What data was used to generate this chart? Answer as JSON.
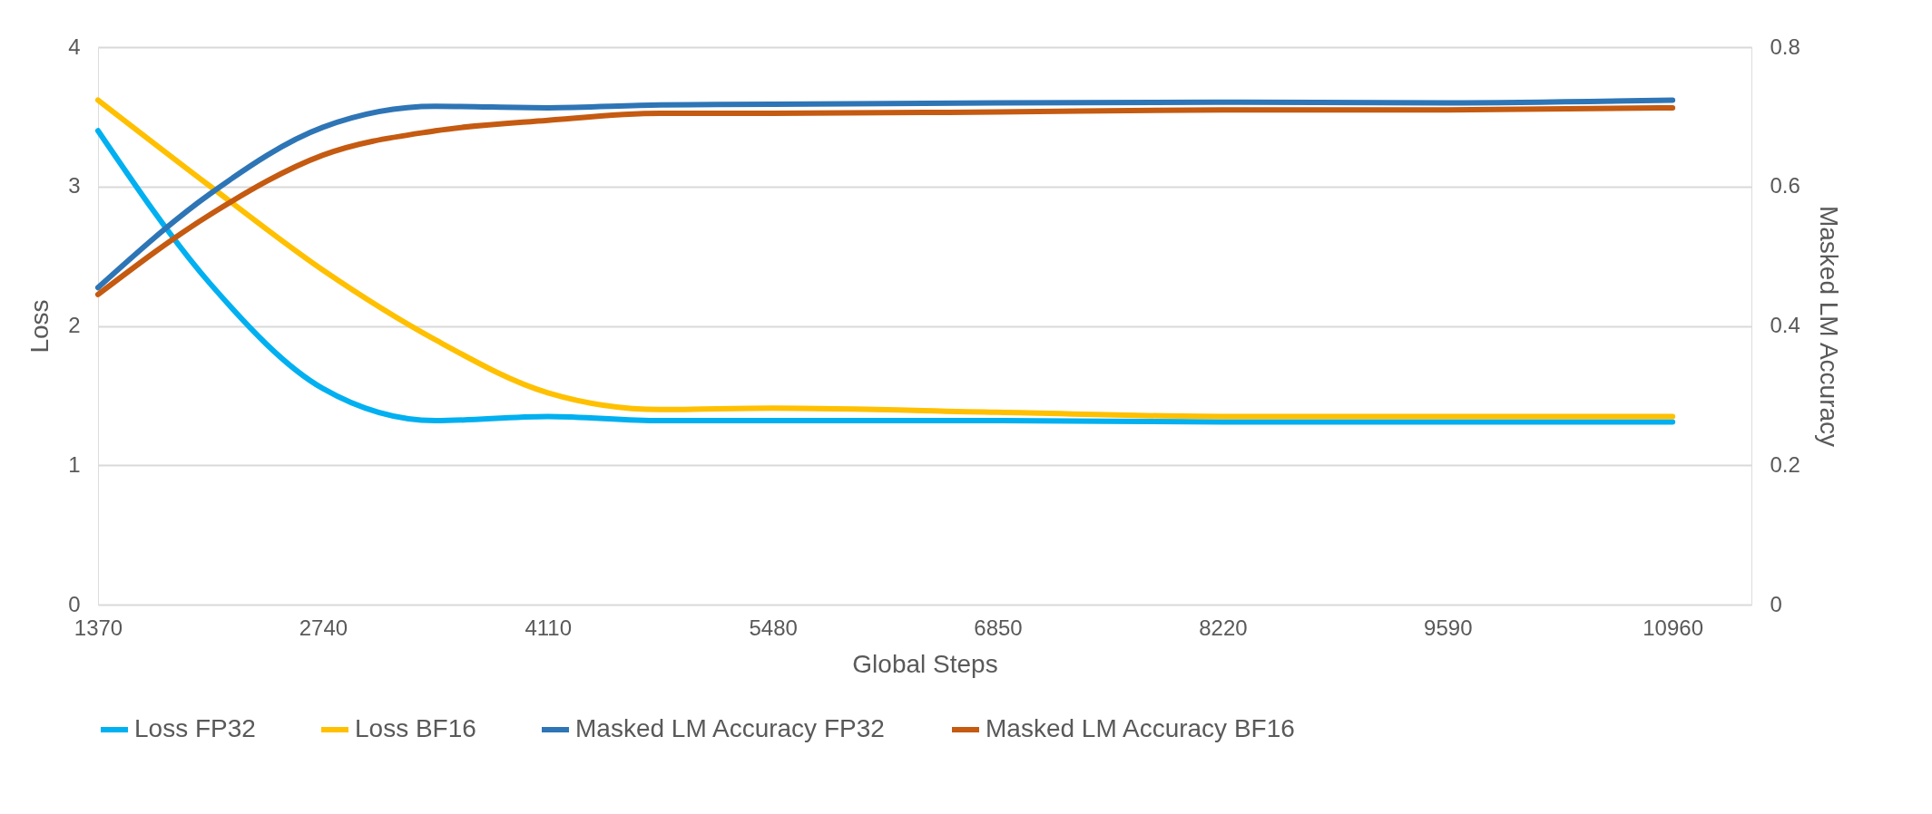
{
  "chart_data": {
    "type": "line",
    "xlabel": "Global Steps",
    "ylabel": "Loss",
    "y2label": "Masked LM Accuracy",
    "xlim": [
      1370,
      11440
    ],
    "xticks": [
      1370,
      2740,
      4110,
      5480,
      6850,
      8220,
      9590,
      10960
    ],
    "ylim": [
      0,
      4
    ],
    "yticks": [
      0,
      1,
      2,
      3,
      4
    ],
    "y2lim": [
      0,
      0.8
    ],
    "y2ticks": [
      0,
      0.2,
      0.4,
      0.6,
      0.8
    ],
    "grid": "y",
    "legend": "bottom",
    "marker": "none",
    "line_style": "solid",
    "x": [
      1370,
      2055,
      2740,
      3425,
      4110,
      4795,
      5480,
      6850,
      8220,
      9590,
      10960
    ],
    "series": [
      {
        "name": "Loss FP32",
        "color": "#00b0f0",
        "values": [
          3.4,
          2.3,
          1.55,
          1.32,
          1.35,
          1.32,
          1.32,
          1.32,
          1.31,
          1.31,
          1.31
        ]
      },
      {
        "name": "Loss BF16",
        "color": "#ffc000",
        "values": [
          3.62,
          3.0,
          2.4,
          1.9,
          1.52,
          1.4,
          1.41,
          1.38,
          1.35,
          1.35,
          1.35
        ]
      },
      {
        "name": "Masked LM Accuracy FP32",
        "color": "#2e75b6",
        "axis": "y2",
        "values": [
          0.455,
          0.59,
          0.685,
          0.715,
          0.713,
          0.717,
          0.718,
          0.72,
          0.721,
          0.72,
          0.724
        ]
      },
      {
        "name": "Masked LM Accuracy BF16",
        "color": "#c55a11",
        "axis": "y2",
        "values": [
          0.445,
          0.56,
          0.645,
          0.68,
          0.695,
          0.705,
          0.705,
          0.707,
          0.71,
          0.71,
          0.713
        ]
      }
    ]
  }
}
